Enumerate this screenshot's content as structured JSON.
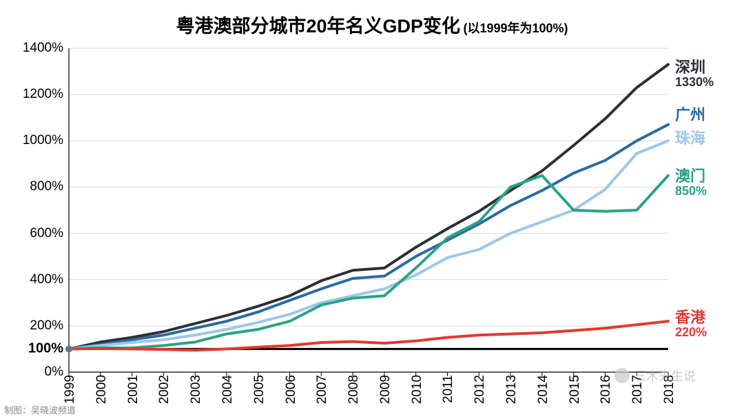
{
  "title": {
    "main": "粤港澳部分城市20年名义GDP变化",
    "sub": "(以1999年为100%)"
  },
  "credit": "制图：吴晓波频道",
  "watermark": "三木先生说",
  "chart": {
    "type": "line",
    "background_color": "#ffffff",
    "grid_color": "#d9d9d9",
    "axis_color": "#000000",
    "axis_line_width": 1.2,
    "grid_line_width": 1,
    "font_family": "Microsoft YaHei",
    "title_fontsize": 27,
    "subtitle_fontsize": 18,
    "axis_label_fontsize": 19,
    "end_label_fontsize": 22,
    "x": {
      "categories": [
        "1999",
        "2000",
        "2001",
        "2002",
        "2003",
        "2004",
        "2005",
        "2006",
        "2007",
        "2008",
        "2009",
        "2010",
        "2011",
        "2012",
        "2013",
        "2014",
        "2015",
        "2016",
        "2017",
        "2018"
      ],
      "label_rotation": 90
    },
    "y": {
      "min": 0,
      "max": 1400,
      "tick_step": 200,
      "unit_suffix": "%",
      "baseline": {
        "value": 100,
        "label": "100%",
        "width": 3,
        "color": "#000000"
      }
    },
    "series": [
      {
        "name": "深圳",
        "color": "#2a2f36",
        "line_width": 4,
        "end_label": "深圳",
        "end_value_label": "1330%",
        "end_label_y": 1310,
        "values": [
          100,
          130,
          150,
          175,
          210,
          245,
          285,
          330,
          395,
          440,
          450,
          540,
          620,
          695,
          785,
          870,
          980,
          1095,
          1230,
          1330
        ]
      },
      {
        "name": "广州",
        "color": "#2c6aa0",
        "line_width": 4,
        "end_label": "广州",
        "end_value_label": "",
        "end_label_y": 1105,
        "values": [
          100,
          120,
          140,
          160,
          190,
          220,
          260,
          310,
          360,
          405,
          415,
          500,
          570,
          640,
          720,
          785,
          860,
          915,
          1000,
          1070
        ]
      },
      {
        "name": "珠海",
        "color": "#9ec7e6",
        "line_width": 4,
        "end_label": "珠海",
        "end_value_label": "",
        "end_label_y": 1005,
        "values": [
          100,
          115,
          128,
          140,
          160,
          185,
          215,
          250,
          300,
          330,
          360,
          420,
          495,
          530,
          600,
          650,
          700,
          790,
          945,
          1000
        ]
      },
      {
        "name": "澳门",
        "color": "#2aa387",
        "line_width": 4,
        "end_label": "澳门",
        "end_value_label": "850%",
        "end_label_y": 840,
        "values": [
          100,
          105,
          105,
          115,
          130,
          165,
          185,
          220,
          290,
          320,
          330,
          450,
          580,
          650,
          800,
          850,
          700,
          695,
          700,
          850
        ]
      },
      {
        "name": "香港",
        "color": "#e03a2f",
        "line_width": 4,
        "end_label": "香港",
        "end_value_label": "220%",
        "end_label_y": 230,
        "values": [
          100,
          102,
          100,
          98,
          95,
          100,
          108,
          115,
          128,
          132,
          125,
          135,
          150,
          160,
          165,
          170,
          180,
          190,
          205,
          220
        ]
      }
    ],
    "start_marker": {
      "x_index": 0,
      "y": 100,
      "color": "#5a7a8a",
      "radius": 5
    }
  }
}
